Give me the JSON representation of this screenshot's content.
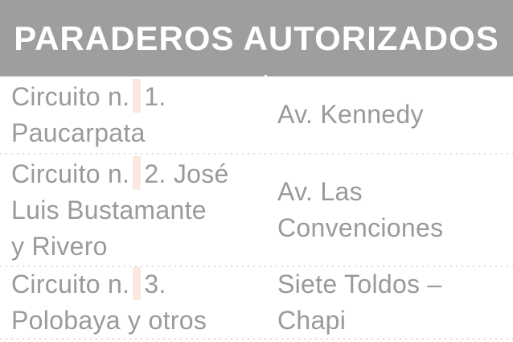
{
  "header": {
    "title": "PARADEROS AUTORIZADOS"
  },
  "table": {
    "rows": [
      {
        "circuit": {
          "prefix": "Circuito n.",
          "number": "1.",
          "extra_lines": [
            "Paucarpata"
          ]
        },
        "stop": {
          "lines": [
            "Av. Kennedy"
          ]
        }
      },
      {
        "circuit": {
          "prefix": "Circuito n.",
          "number": "2. José",
          "extra_lines": [
            "Luis Bustamante",
            "y Rivero"
          ]
        },
        "stop": {
          "lines": [
            "Av. Las",
            "Convenciones"
          ]
        }
      },
      {
        "circuit": {
          "prefix": "Circuito n.",
          "number": "3.",
          "extra_lines": [
            "Polobaya y otros"
          ]
        },
        "stop": {
          "lines": [
            "Siete Toldos –",
            "Chapi"
          ]
        }
      }
    ]
  },
  "chart_data": {
    "type": "table",
    "title": "PARADEROS AUTORIZADOS",
    "rows": [
      [
        "Circuito n. 1. Paucarpata",
        "Av. Kennedy"
      ],
      [
        "Circuito n. 2. José Luis Bustamante y Rivero",
        "Av. Las Convenciones"
      ],
      [
        "Circuito n. 3. Polobaya y otros",
        "Siete Toldos – Chapi"
      ]
    ],
    "layout": {
      "header_style": "gray band, white bold centered text",
      "row_separators": "dotted"
    }
  },
  "colors": {
    "header_bg": "#9e9e9e",
    "header_text": "#ffffff",
    "body_text": "#9a9a9a",
    "highlight": "#fbe9e1",
    "separator_dots": "#dedede"
  }
}
